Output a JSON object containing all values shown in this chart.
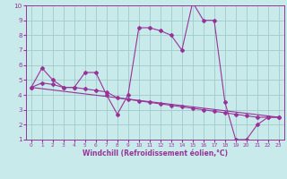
{
  "line1": {
    "x": [
      0,
      1,
      2,
      3,
      4,
      5,
      6,
      7,
      8,
      9,
      10,
      11,
      12,
      13,
      14,
      15,
      16,
      17,
      18,
      19,
      20,
      21,
      22,
      23
    ],
    "y": [
      4.5,
      5.8,
      5.0,
      4.5,
      4.5,
      5.5,
      5.5,
      4.0,
      2.7,
      4.0,
      8.5,
      8.5,
      8.3,
      8.0,
      7.0,
      10.2,
      9.0,
      9.0,
      3.5,
      1.0,
      1.0,
      2.0,
      2.5,
      2.5
    ]
  },
  "line2": {
    "x": [
      0,
      1,
      2,
      3,
      4,
      5,
      6,
      7,
      8,
      9,
      10,
      11,
      12,
      13,
      14,
      15,
      16,
      17,
      18,
      19,
      20,
      21,
      22,
      23
    ],
    "y": [
      4.5,
      4.8,
      4.7,
      4.5,
      4.5,
      4.4,
      4.3,
      4.2,
      3.8,
      3.7,
      3.6,
      3.5,
      3.4,
      3.3,
      3.2,
      3.1,
      3.0,
      2.9,
      2.8,
      2.7,
      2.6,
      2.5,
      2.5,
      2.5
    ]
  },
  "line3": {
    "x": [
      0,
      23
    ],
    "y": [
      4.5,
      2.5
    ]
  },
  "color": "#993399",
  "bg_color": "#c8eaea",
  "grid_color": "#a0cccc",
  "xlabel": "Windchill (Refroidissement éolien,°C)",
  "xlim": [
    -0.5,
    23.5
  ],
  "ylim": [
    1,
    10
  ],
  "xticks": [
    0,
    1,
    2,
    3,
    4,
    5,
    6,
    7,
    8,
    9,
    10,
    11,
    12,
    13,
    14,
    15,
    16,
    17,
    18,
    19,
    20,
    21,
    22,
    23
  ],
  "yticks": [
    1,
    2,
    3,
    4,
    5,
    6,
    7,
    8,
    9,
    10
  ],
  "marker": "D",
  "markersize": 2.0,
  "linewidth": 0.8,
  "xlabel_fontsize": 5.5,
  "tick_fontsize_x": 4.2,
  "tick_fontsize_y": 5.2
}
